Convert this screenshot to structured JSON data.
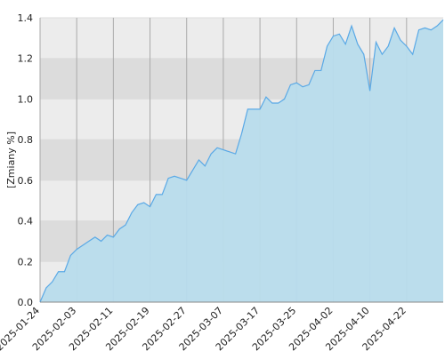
{
  "chart_data": {
    "type": "area",
    "y_label": "[Zmiany %]",
    "categories": [
      "2025-01-24",
      null,
      null,
      null,
      null,
      null,
      "2025-02-03",
      null,
      null,
      null,
      null,
      null,
      "2025-02-11",
      null,
      null,
      null,
      null,
      null,
      "2025-02-19",
      null,
      null,
      null,
      null,
      null,
      "2025-02-27",
      null,
      null,
      null,
      null,
      null,
      "2025-03-07",
      null,
      null,
      null,
      null,
      null,
      "2025-03-17",
      null,
      null,
      null,
      null,
      null,
      "2025-03-25",
      null,
      null,
      null,
      null,
      null,
      "2025-04-02",
      null,
      null,
      null,
      null,
      null,
      "2025-04-10",
      null,
      null,
      null,
      null,
      null,
      "2025-04-22",
      null,
      null,
      null,
      null,
      null,
      null
    ],
    "values": [
      0.0,
      0.07,
      0.1,
      0.15,
      0.15,
      0.23,
      0.26,
      0.28,
      0.3,
      0.32,
      0.3,
      0.33,
      0.32,
      0.36,
      0.38,
      0.44,
      0.48,
      0.49,
      0.47,
      0.53,
      0.53,
      0.61,
      0.62,
      0.61,
      0.6,
      0.65,
      0.7,
      0.67,
      0.73,
      0.76,
      0.75,
      0.74,
      0.73,
      0.83,
      0.95,
      0.95,
      0.95,
      1.01,
      0.98,
      0.98,
      1.0,
      1.07,
      1.08,
      1.06,
      1.07,
      1.14,
      1.14,
      1.26,
      1.31,
      1.32,
      1.27,
      1.36,
      1.27,
      1.22,
      1.04,
      1.28,
      1.22,
      1.26,
      1.35,
      1.29,
      1.26,
      1.22,
      1.34,
      1.35,
      1.34,
      1.36,
      1.39
    ],
    "color": "#5aa9e6",
    "fill": "#b8dcec",
    "band_colors": [
      "#ececec",
      "#dcdcdc"
    ],
    "ylim": [
      0,
      1.4
    ],
    "yticks": [
      {
        "value": 0,
        "label": "0.0"
      },
      0.2,
      0.4,
      0.6,
      0.8,
      {
        "value": 1,
        "label": "1.0"
      },
      1.2,
      1.4
    ],
    "grid": true
  }
}
